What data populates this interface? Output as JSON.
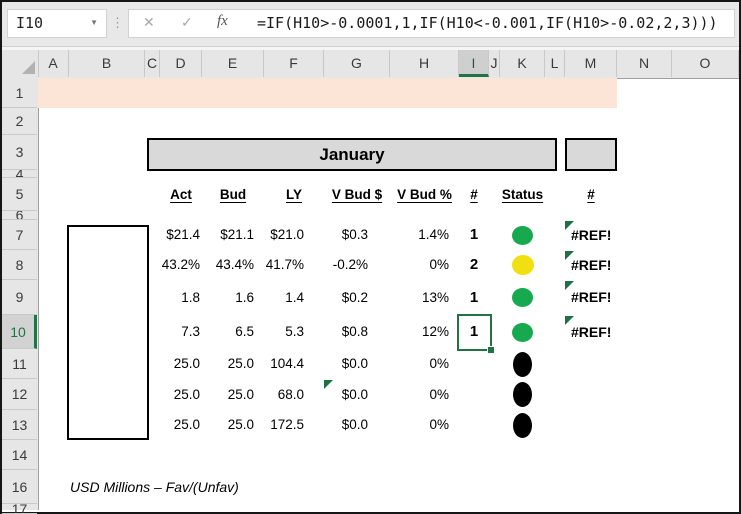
{
  "formula_bar": {
    "name_box_value": "I10",
    "formula": "=IF(H10>-0.0001,1,IF(H10<-0.001,IF(H10>-0.02,2,3)))",
    "icons": {
      "dropdown": "▼",
      "dots": "⋮",
      "cancel": "✕",
      "confirm": "✓",
      "fx": "fx"
    }
  },
  "grid": {
    "column_headers": [
      "A",
      "B",
      "C",
      "D",
      "E",
      "F",
      "G",
      "H",
      "I",
      "J",
      "K",
      "L",
      "M",
      "N",
      "O"
    ],
    "row_headers": [
      "1",
      "2",
      "3",
      "4",
      "5",
      "6",
      "7",
      "8",
      "9",
      "10",
      "11",
      "12",
      "13",
      "14",
      "16",
      "17"
    ],
    "selection": {
      "cell": "I10",
      "column": "I",
      "row": "10"
    }
  },
  "sheet": {
    "title": "January",
    "table_headers": [
      "Act",
      "Bud",
      "LY",
      "V Bud $",
      "V Bud %",
      "#",
      "Status",
      "#"
    ],
    "rows": [
      {
        "act": "$21.4",
        "bud": "$21.1",
        "ly": "$21.0",
        "vbud_d": "$0.3",
        "vbud_p": "1.4%",
        "num": "1",
        "status": "green",
        "ref": "#REF!",
        "ref_triangle": true
      },
      {
        "act": "43.2%",
        "bud": "43.4%",
        "ly": "41.7%",
        "vbud_d": "-0.2%",
        "vbud_p": "0%",
        "num": "2",
        "status": "yellow",
        "ref": "#REF!",
        "ref_triangle": true
      },
      {
        "act": "1.8",
        "bud": "1.6",
        "ly": "1.4",
        "vbud_d": "$0.2",
        "vbud_p": "13%",
        "num": "1",
        "status": "green",
        "ref": "#REF!",
        "ref_triangle": true
      },
      {
        "act": "7.3",
        "bud": "6.5",
        "ly": "5.3",
        "vbud_d": "$0.8",
        "vbud_p": "12%",
        "num": "1",
        "status": "green",
        "ref": "#REF!",
        "ref_triangle": true,
        "selected": true
      },
      {
        "act": "25.0",
        "bud": "25.0",
        "ly": "104.4",
        "vbud_d": "$0.0",
        "vbud_p": "0%",
        "num": "",
        "status": "black",
        "ref": ""
      },
      {
        "act": "25.0",
        "bud": "25.0",
        "ly": "68.0",
        "vbud_d": "$0.0",
        "vbud_p": "0%",
        "num": "",
        "status": "black",
        "ref": "",
        "g_triangle": true
      },
      {
        "act": "25.0",
        "bud": "25.0",
        "ly": "172.5",
        "vbud_d": "$0.0",
        "vbud_p": "0%",
        "num": "",
        "status": "black",
        "ref": ""
      }
    ],
    "footnote": "USD Millions – Fav/(Unfav)"
  },
  "colors": {
    "selection_green": "#217346",
    "status_green": "#17A94F",
    "status_yellow": "#F2DF12",
    "status_black": "#000000",
    "row1_fill": "#FCE4D6",
    "title_fill": "#D9D9D9",
    "error_indicator": "#1E7145"
  }
}
